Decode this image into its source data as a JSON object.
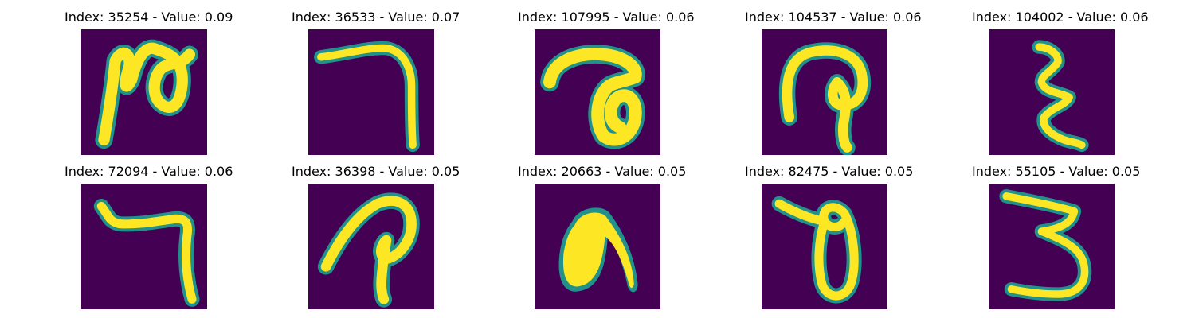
{
  "colors": {
    "background": "#440154",
    "mid": "#21918c",
    "stroke": "#fde725"
  },
  "panels": [
    {
      "title": "Index: 35254 - Value: 0.09",
      "glyph": "handwritten-character-hook-loop"
    },
    {
      "title": "Index: 36533 - Value: 0.07",
      "glyph": "handwritten-character-arch"
    },
    {
      "title": "Index: 107995 - Value: 0.06",
      "glyph": "handwritten-character-curl"
    },
    {
      "title": "Index: 104537 - Value: 0.06",
      "glyph": "handwritten-character-arch-loop"
    },
    {
      "title": "Index: 104002 - Value: 0.06",
      "glyph": "handwritten-character-zigzag"
    },
    {
      "title": "Index: 72094 - Value: 0.06",
      "glyph": "handwritten-character-corner"
    },
    {
      "title": "Index: 36398 - Value: 0.05",
      "glyph": "handwritten-character-hook"
    },
    {
      "title": "Index: 20663 - Value: 0.05",
      "glyph": "handwritten-character-blob-arch"
    },
    {
      "title": "Index: 82475 - Value: 0.05",
      "glyph": "handwritten-character-loop"
    },
    {
      "title": "Index: 55105 - Value: 0.05",
      "glyph": "handwritten-character-three"
    }
  ]
}
